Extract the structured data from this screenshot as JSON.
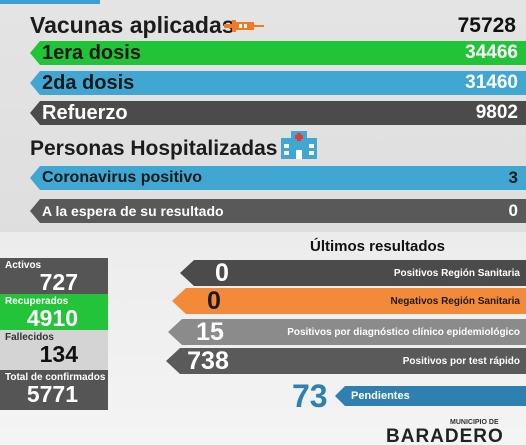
{
  "vacunas": {
    "title": "Vacunas aplicadas",
    "total": "75728",
    "rows": [
      {
        "label": "1era dosis",
        "value": "34466"
      },
      {
        "label": "2da dosis",
        "value": "31460"
      },
      {
        "label": "Refuerzo",
        "value": "9802"
      }
    ]
  },
  "hospitalizadas": {
    "title": "Personas Hospitalizadas",
    "rows": [
      {
        "label": "Coronavirus positivo",
        "value": "3"
      },
      {
        "label": "A la espera de su resultado",
        "value": "0"
      }
    ]
  },
  "stats": {
    "activos": {
      "label": "Activos",
      "value": "727"
    },
    "recuperados": {
      "label": "Recuperados",
      "value": "4910"
    },
    "fallecidos": {
      "label": "Fallecidos",
      "value": "134"
    },
    "confirmados": {
      "label": "Total de confirmados",
      "value": "5771"
    }
  },
  "ultimos": {
    "title": "Últimos resultados",
    "rows": [
      {
        "value": "0",
        "label": "Positivos Región Sanitaria"
      },
      {
        "value": "0",
        "label": "Negativos Región Sanitaria"
      },
      {
        "value": "15",
        "label": "Positivos por diagnóstico clínico epidemiológico"
      },
      {
        "value": "738",
        "label": "Positivos por test rápido"
      }
    ],
    "pendientes": {
      "value": "73",
      "label": "Pendientes"
    }
  },
  "logo": {
    "small": "MUNICIPIO DE",
    "big": "BARADERO"
  },
  "colors": {
    "green": "#22c437",
    "blue": "#3fa7d2",
    "orange": "#f28a39",
    "dark": "#4b4b4b",
    "pendientes": "#2f7fb1"
  },
  "icons": [
    "syringe-icon",
    "hospital-icon"
  ]
}
